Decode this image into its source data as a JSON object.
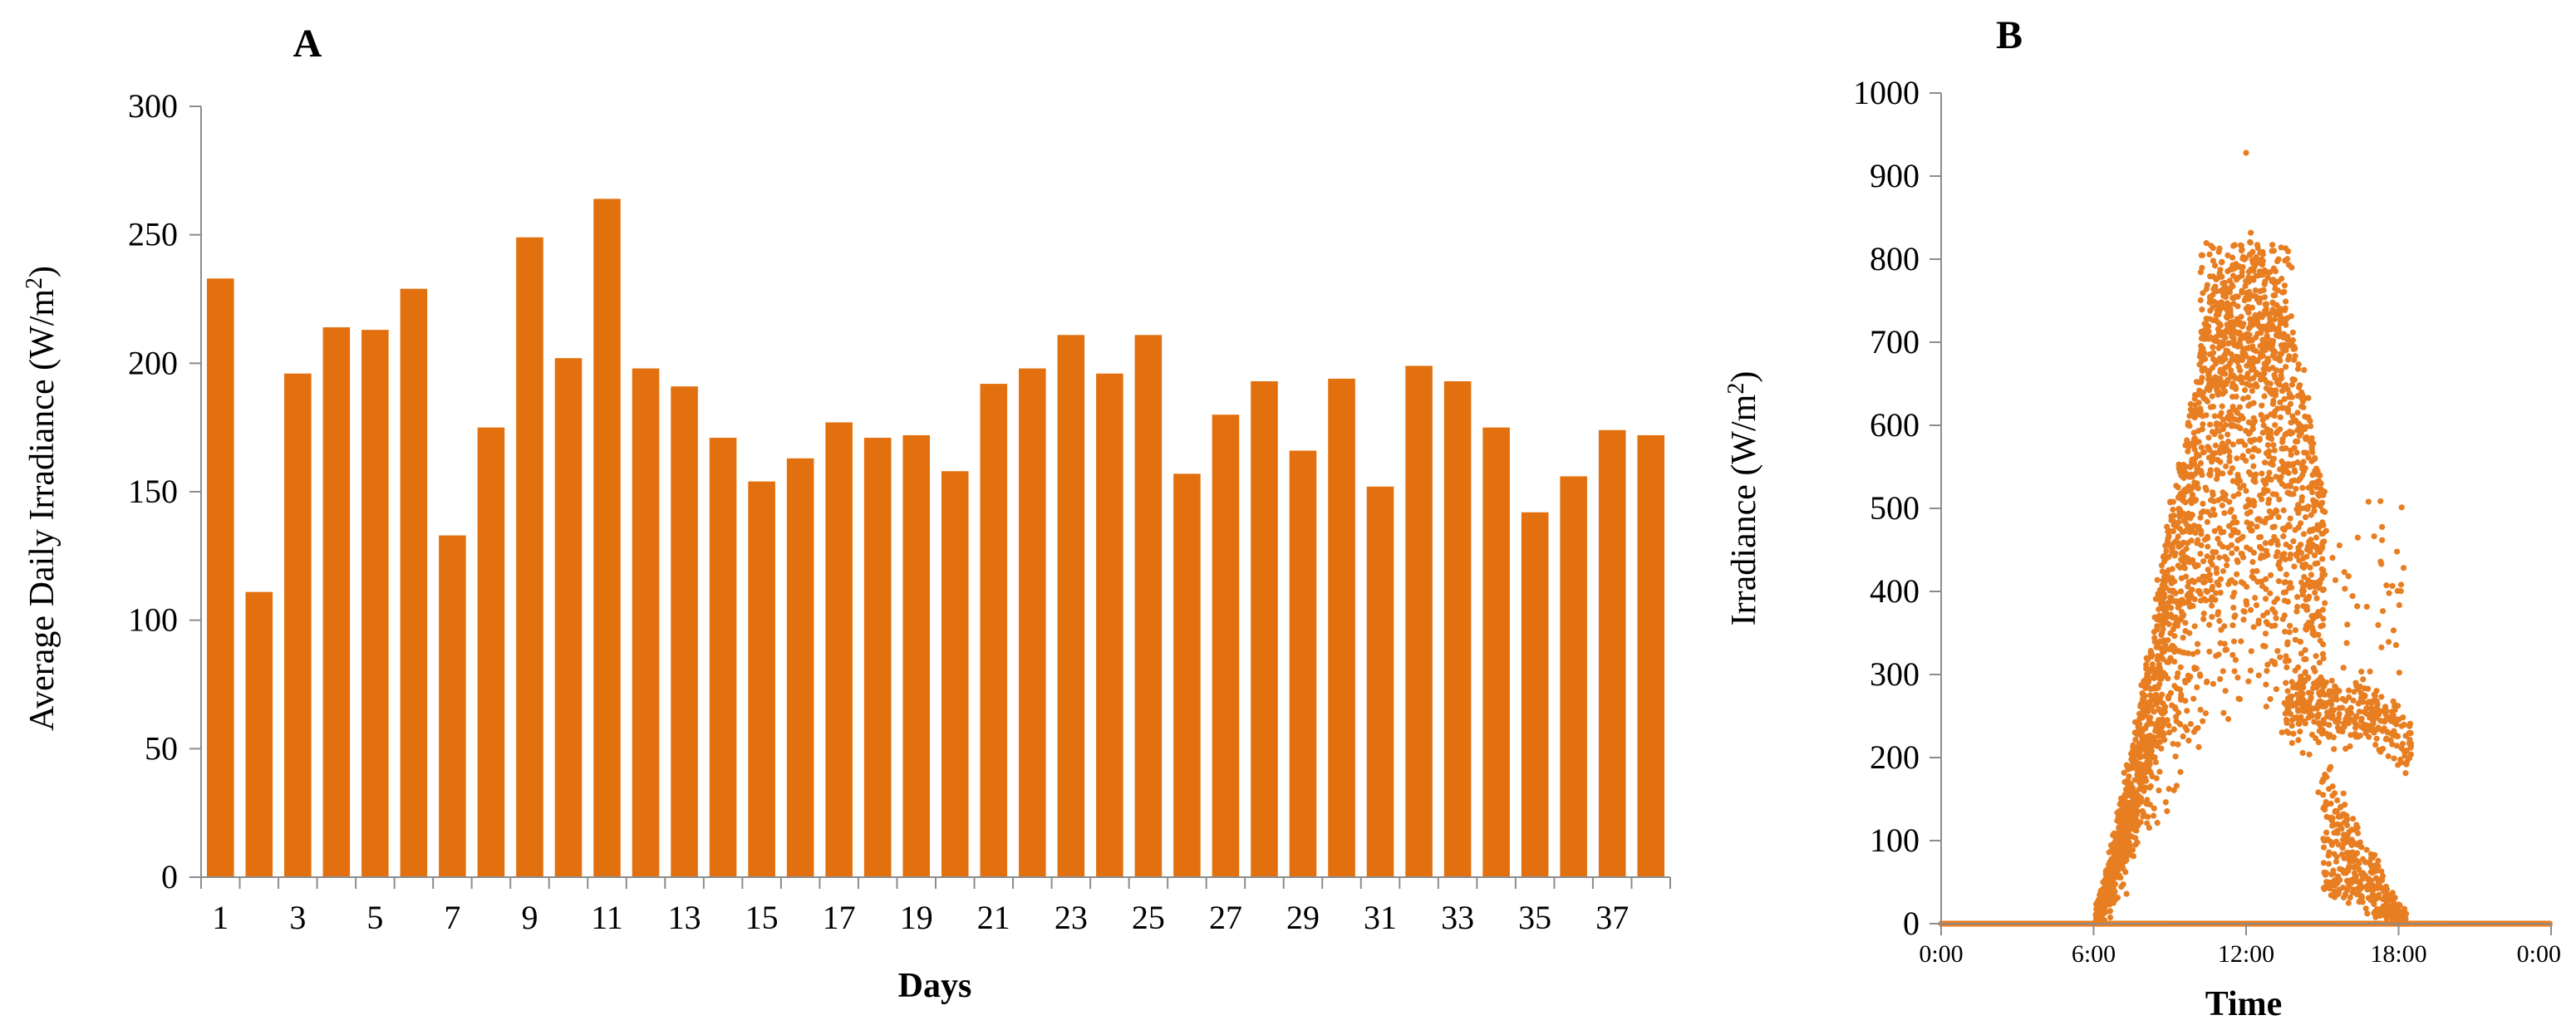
{
  "chart_data": [
    {
      "type": "bar",
      "panel": "A",
      "xlabel": "Days",
      "ylabel": "Average Daily Irradiance  (W/m",
      "ylabel_sup": "2",
      "ylabel_tail": ")",
      "ylim": [
        0,
        300
      ],
      "yticks": [
        "0",
        "50",
        "100",
        "150",
        "200",
        "250",
        "300"
      ],
      "categories": [
        1,
        2,
        3,
        4,
        5,
        6,
        7,
        8,
        9,
        10,
        11,
        12,
        13,
        14,
        15,
        16,
        17,
        18,
        19,
        20,
        21,
        22,
        23,
        24,
        25,
        26,
        27,
        28,
        29,
        30,
        31,
        32,
        33,
        34,
        35,
        36,
        37,
        38
      ],
      "tick_labels": [
        "1",
        "3",
        "5",
        "7",
        "9",
        "11",
        "13",
        "15",
        "17",
        "19",
        "21",
        "23",
        "25",
        "27",
        "29",
        "31",
        "33",
        "35",
        "37"
      ],
      "values": [
        233,
        111,
        196,
        214,
        213,
        229,
        133,
        175,
        249,
        202,
        264,
        198,
        191,
        171,
        154,
        163,
        177,
        171,
        172,
        158,
        192,
        198,
        211,
        196,
        211,
        157,
        180,
        193,
        166,
        194,
        152,
        199,
        193,
        175,
        142,
        156,
        174,
        172
      ],
      "color": "#E2700E",
      "grid": false
    },
    {
      "type": "scatter",
      "panel": "B",
      "xlabel": "Time",
      "ylabel": "Irradiance  (W/m",
      "ylabel_sup": "2",
      "ylabel_tail": ")",
      "xlim": [
        "0:00",
        "0:00"
      ],
      "xticks": [
        "0:00",
        "6:00",
        "12:00",
        "18:00",
        "0:00"
      ],
      "ylim": [
        0,
        1000
      ],
      "yticks": [
        "0",
        "100",
        "200",
        "300",
        "400",
        "500",
        "600",
        "700",
        "800",
        "900",
        "1000"
      ],
      "peak": {
        "x": "12:00",
        "y": 928
      },
      "color": "#E87E22",
      "grid": false
    }
  ]
}
